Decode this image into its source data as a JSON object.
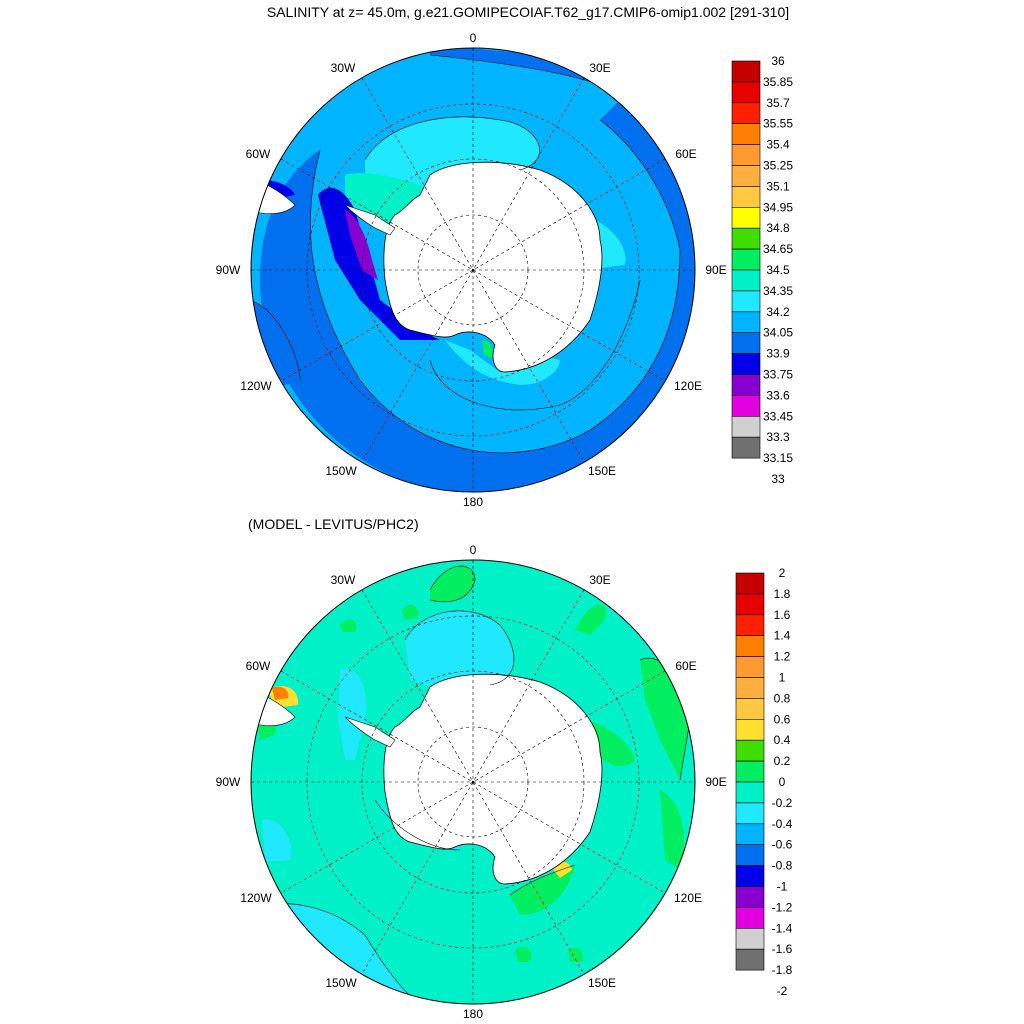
{
  "top_panel": {
    "title": "SALINITY at z=  45.0m, g.e21.GOMIPECOIAF.T62_g17.CMIP6-omip1.002 [291-310]",
    "lon_labels": {
      "n": "0",
      "nne": "30E",
      "ene": "60E",
      "e": "90E",
      "ese": "120E",
      "sse": "150E",
      "s": "180",
      "ssw": "150W",
      "wsw": "120W",
      "w": "90W",
      "wnw": "60W",
      "nnw": "30W"
    },
    "colorbar": {
      "labels": [
        "36",
        "35.85",
        "35.7",
        "35.55",
        "35.4",
        "35.25",
        "35.1",
        "34.95",
        "34.8",
        "34.65",
        "34.5",
        "34.35",
        "34.2",
        "34.05",
        "33.9",
        "33.75",
        "33.6",
        "33.45",
        "33.3",
        "33.15",
        "33"
      ],
      "colors": [
        "#c40000",
        "#e60000",
        "#ff2000",
        "#ff8000",
        "#ff9a30",
        "#ffae40",
        "#ffc840",
        "#ffff00",
        "#40dd00",
        "#00ee60",
        "#00f0c8",
        "#20e8ff",
        "#00b4ff",
        "#0070ee",
        "#0000e8",
        "#8800d0",
        "#e000e0",
        "#d0d0d0",
        "#707070"
      ]
    }
  },
  "bottom_panel": {
    "title": "(MODEL - LEVITUS/PHC2)",
    "lon_labels": {
      "n": "0",
      "nne": "30E",
      "ene": "60E",
      "e": "90E",
      "ese": "120E",
      "sse": "150E",
      "s": "180",
      "ssw": "150W",
      "wsw": "120W",
      "w": "90W",
      "wnw": "60W",
      "nnw": "30W"
    },
    "colorbar": {
      "labels": [
        "2",
        "1.8",
        "1.6",
        "1.4",
        "1.2",
        "1",
        "0.8",
        "0.6",
        "0.4",
        "0.2",
        "0",
        "-0.2",
        "-0.4",
        "-0.6",
        "-0.8",
        "-1",
        "-1.2",
        "-1.4",
        "-1.6",
        "-1.8",
        "-2"
      ],
      "colors": [
        "#c40000",
        "#e60000",
        "#ff2000",
        "#ff8000",
        "#ff9a30",
        "#ffae40",
        "#ffc840",
        "#ffe030",
        "#40dd00",
        "#00ee60",
        "#00f0c8",
        "#20e8ff",
        "#00b4ff",
        "#0070ee",
        "#0000e8",
        "#8800d0",
        "#e000e0",
        "#d0d0d0",
        "#707070"
      ]
    }
  }
}
